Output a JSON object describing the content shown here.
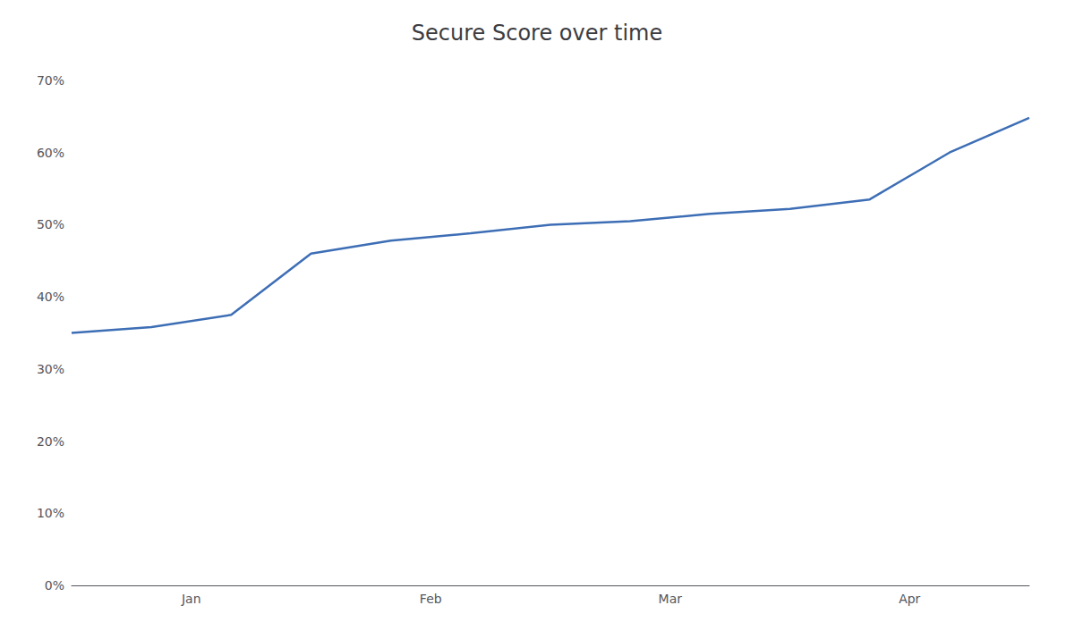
{
  "chart_data": {
    "type": "line",
    "title": "Secure Score over time",
    "x": [
      0,
      1,
      2,
      3,
      4,
      5,
      6,
      7,
      8,
      9,
      10,
      11,
      12
    ],
    "values": [
      0.35,
      0.358,
      0.375,
      0.46,
      0.478,
      0.488,
      0.5,
      0.505,
      0.515,
      0.522,
      0.535,
      0.6,
      0.648
    ],
    "color": "#3d6eb5",
    "xlim": [
      0,
      12
    ],
    "xticks": [
      {
        "value": 1.5,
        "label": "Jan"
      },
      {
        "value": 4.5,
        "label": "Feb"
      },
      {
        "value": 7.5,
        "label": "Mar"
      },
      {
        "value": 10.5,
        "label": "Apr"
      }
    ],
    "ylim": [
      0,
      0.7
    ],
    "yticks": [
      {
        "value": 0,
        "label": "0%"
      },
      {
        "value": 0.1,
        "label": "10%"
      },
      {
        "value": 0.2,
        "label": "20%"
      },
      {
        "value": 0.3,
        "label": "30%"
      },
      {
        "value": 0.4,
        "label": "40%"
      },
      {
        "value": 0.5,
        "label": "50%"
      },
      {
        "value": 0.6,
        "label": "60%"
      },
      {
        "value": 0.7,
        "label": "70%"
      }
    ],
    "grid": false
  }
}
